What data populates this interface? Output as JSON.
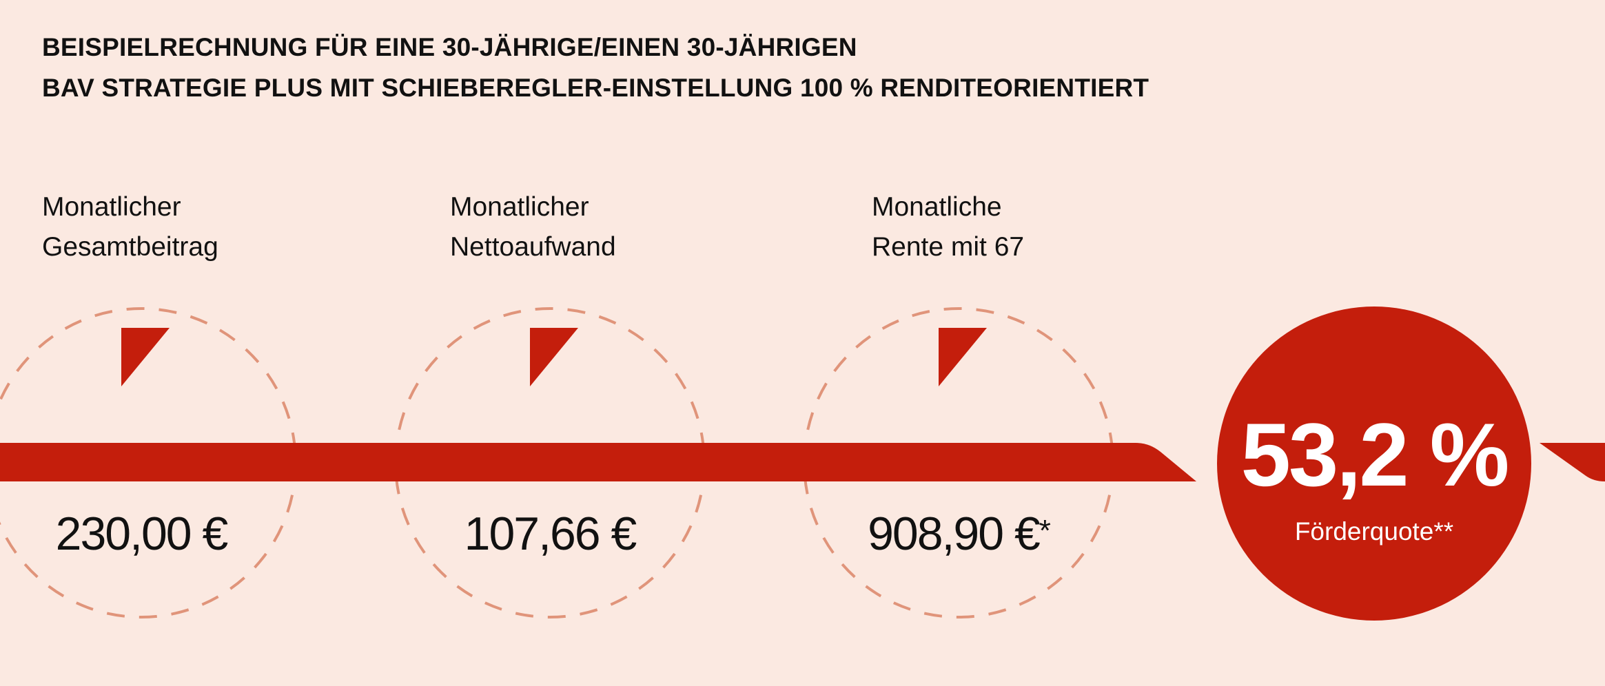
{
  "heading": {
    "line1": "BEISPIELRECHNUNG FÜR EINE 30-JÄHRIGE/EINEN 30-JÄHRIGEN",
    "line2": "BAV STRATEGIE PLUS MIT SCHIEBEREGLER-EINSTELLUNG 100 % RENDITEORIENTIERT"
  },
  "stats": [
    {
      "label_line1": "Monatlicher",
      "label_line2": "Gesamtbeitrag",
      "value": "230,00 €",
      "footnote": ""
    },
    {
      "label_line1": "Monatlicher",
      "label_line2": "Nettoaufwand",
      "value": "107,66 €",
      "footnote": ""
    },
    {
      "label_line1": "Monatliche",
      "label_line2": "Rente mit 67",
      "value": "908,90 €",
      "footnote": "*"
    }
  ],
  "highlight": {
    "value": "53,2 %",
    "label": "Förderquote**"
  },
  "colors": {
    "background": "#fbe9e1",
    "accent_red": "#c41e0c",
    "dashed_circle": "#e0947a",
    "text": "#111111"
  },
  "icons": {
    "marker": "red-triangle-pointer-icon"
  }
}
